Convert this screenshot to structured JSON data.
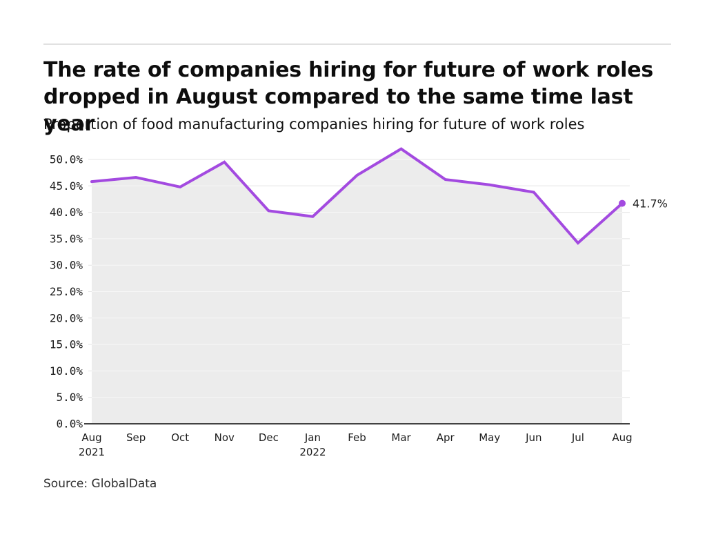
{
  "colors": {
    "line": "#a34ae0",
    "area_fill": "#ececec",
    "grid_base": "#e4e4e4",
    "grid_over_fill": "#f7f7f7",
    "axis": "#424242",
    "tick_text": "#1c1c1c",
    "title_text": "#0d0d0d",
    "source_text": "#2e2e2e",
    "top_rule": "#e1e1e1",
    "background": "#ffffff"
  },
  "chart_data": {
    "type": "line",
    "title_lines": [
      "The rate of companies hiring for future of work roles",
      "dropped in August compared to the same time last year"
    ],
    "title": "The rate of companies hiring for future of work roles dropped in August compared to the same time last year",
    "subtitle": "Proportion of food manufacturing companies hiring for future of work roles",
    "source": "Source: GlobalData",
    "xlabel": "",
    "ylabel": "",
    "x": [
      {
        "month": "Aug",
        "year": "2021"
      },
      {
        "month": "Sep"
      },
      {
        "month": "Oct"
      },
      {
        "month": "Nov"
      },
      {
        "month": "Dec"
      },
      {
        "month": "Jan",
        "year": "2022"
      },
      {
        "month": "Feb"
      },
      {
        "month": "Mar"
      },
      {
        "month": "Apr"
      },
      {
        "month": "May"
      },
      {
        "month": "Jun"
      },
      {
        "month": "Jul"
      },
      {
        "month": "Aug"
      }
    ],
    "values": [
      45.8,
      46.6,
      44.8,
      49.5,
      40.3,
      39.2,
      47.0,
      52.0,
      46.2,
      45.2,
      43.8,
      34.2,
      41.7
    ],
    "end_point_label": "41.7%",
    "ylim": [
      0,
      50
    ],
    "ytick_step": 5,
    "ytick_labels": [
      "0.0%",
      "5.0%",
      "10.0%",
      "15.0%",
      "20.0%",
      "25.0%",
      "30.0%",
      "35.0%",
      "40.0%",
      "45.0%",
      "50.0%"
    ],
    "grid": true,
    "legend": false,
    "area_filled": true,
    "marker_on_last_point": true
  }
}
